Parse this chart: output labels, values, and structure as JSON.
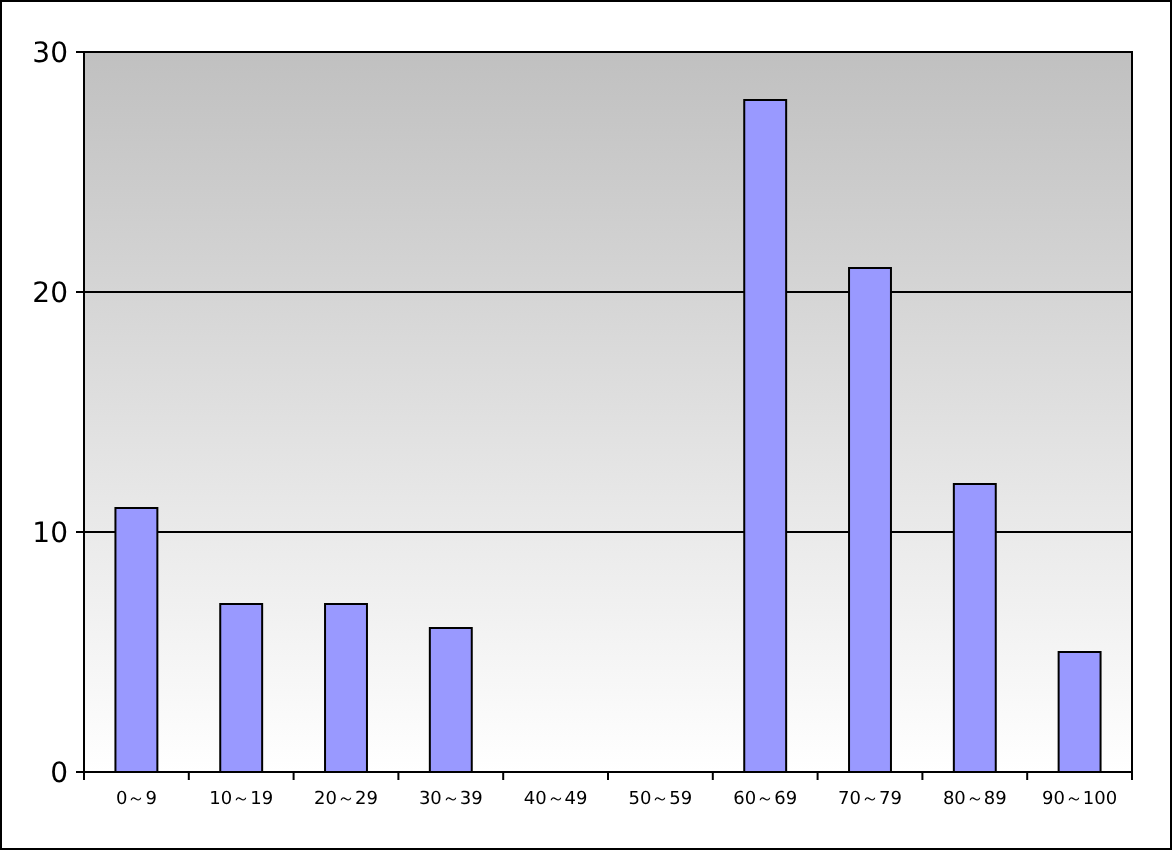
{
  "chart_data": {
    "type": "bar",
    "categories": [
      "0～9",
      "10～19",
      "20～29",
      "30～39",
      "40～49",
      "50～59",
      "60～69",
      "70～79",
      "80～89",
      "90～100"
    ],
    "values": [
      11,
      7,
      7,
      6,
      0,
      0,
      28,
      21,
      12,
      5
    ],
    "color": "#9999ff",
    "ylim": [
      0,
      30
    ],
    "yticks": [
      0,
      10,
      20,
      30
    ],
    "grid": "y"
  }
}
